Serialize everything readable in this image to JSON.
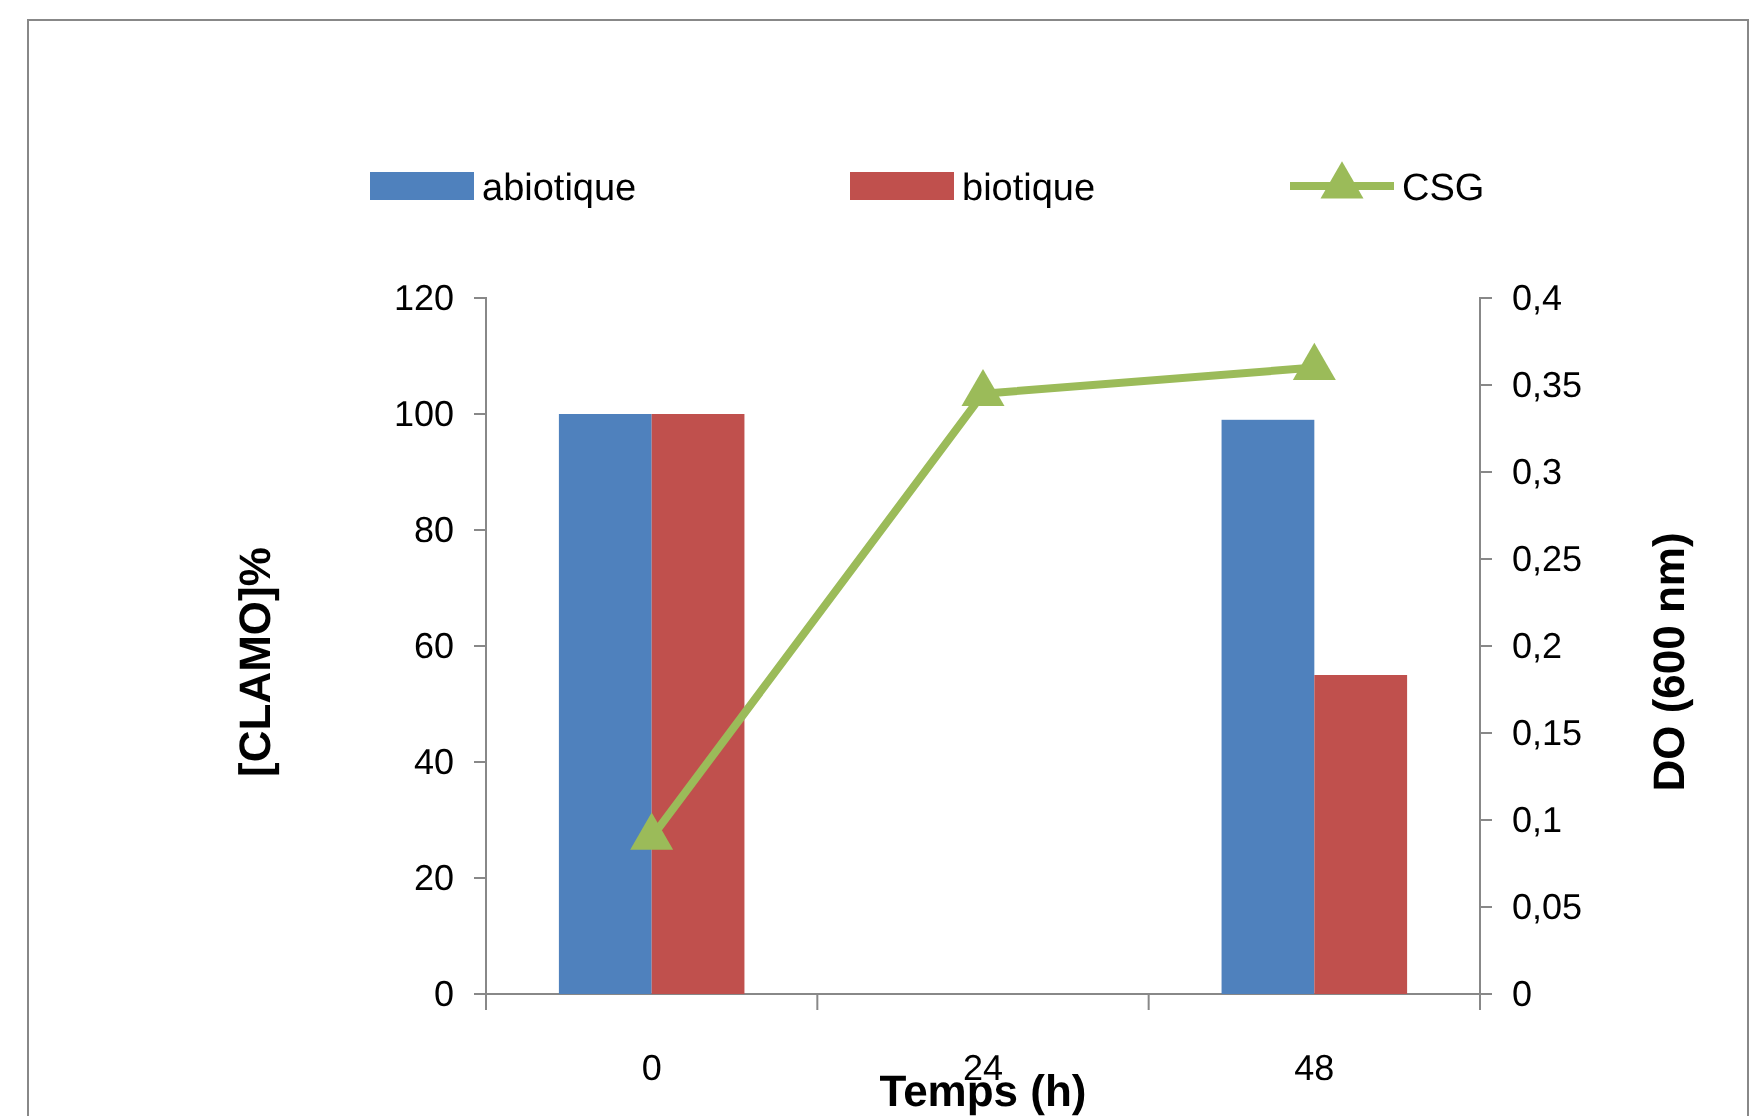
{
  "chart_data": {
    "type": "bar",
    "xlabel": "Temps (h)",
    "ylabel": "[CLAMO]%",
    "y2label": "DO (600 nm)",
    "categories": [
      "0",
      "24",
      "48"
    ],
    "series": [
      {
        "name": "abiotique",
        "color": "#4f81bd",
        "values": [
          100,
          null,
          99
        ]
      },
      {
        "name": "biotique",
        "color": "#c0504d",
        "values": [
          100,
          null,
          55
        ]
      },
      {
        "name": "CSG",
        "type": "line",
        "axis": "y2",
        "color": "#9bbb59",
        "marker": "triangle",
        "values": [
          0.09,
          0.345,
          0.36
        ]
      }
    ],
    "ylim": [
      0,
      120
    ],
    "yticks": [
      0,
      20,
      40,
      60,
      80,
      100,
      120
    ],
    "y2lim": [
      0,
      0.4
    ],
    "y2ticks": [
      {
        "value": 0,
        "label": "0"
      },
      {
        "value": 0.05,
        "label": "0,05"
      },
      {
        "value": 0.1,
        "label": "0,1"
      },
      {
        "value": 0.15,
        "label": "0,15"
      },
      {
        "value": 0.2,
        "label": "0,2"
      },
      {
        "value": 0.25,
        "label": "0,25"
      },
      {
        "value": 0.3,
        "label": "0,3"
      },
      {
        "value": 0.35,
        "label": "0,35"
      },
      {
        "value": 0.4,
        "label": "0,4"
      }
    ],
    "legend": "top",
    "grid": false
  }
}
